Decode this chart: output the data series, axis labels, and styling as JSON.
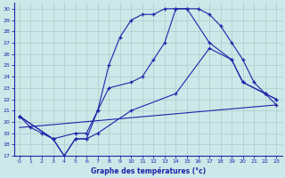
{
  "xlabel": "Graphe des températures (°c)",
  "bg_color": "#cce8e8",
  "grid_color": "#aacccc",
  "line_color": "#2222aa",
  "xlim": [
    -0.5,
    23.5
  ],
  "ylim": [
    17,
    30.5
  ],
  "xticks": [
    0,
    1,
    2,
    3,
    4,
    5,
    6,
    7,
    8,
    9,
    10,
    11,
    12,
    13,
    14,
    15,
    16,
    17,
    18,
    19,
    20,
    21,
    22,
    23
  ],
  "yticks": [
    17,
    18,
    19,
    20,
    21,
    22,
    23,
    24,
    25,
    26,
    27,
    28,
    29,
    30
  ],
  "line1_x": [
    0,
    1,
    2,
    3,
    4,
    5,
    6,
    7,
    8,
    9,
    10,
    11,
    12,
    13,
    14,
    15,
    16,
    17,
    18,
    19,
    20,
    21,
    22,
    23
  ],
  "line1_y": [
    20.5,
    19.5,
    19.0,
    18.5,
    17.0,
    18.5,
    18.5,
    21.0,
    25.0,
    27.5,
    29.0,
    29.5,
    29.5,
    30.0,
    30.0,
    30.0,
    30.0,
    29.5,
    28.5,
    27.0,
    25.5,
    23.5,
    22.5,
    21.5
  ],
  "line2_x": [
    0,
    3,
    5,
    6,
    7,
    8,
    10,
    11,
    12,
    13,
    14,
    15,
    17,
    19,
    20,
    22,
    23
  ],
  "line2_y": [
    20.5,
    18.5,
    19.0,
    19.0,
    21.0,
    23.0,
    23.5,
    24.0,
    25.5,
    27.0,
    30.0,
    30.0,
    27.0,
    25.5,
    23.5,
    22.5,
    22.0
  ],
  "line3_x": [
    0,
    23
  ],
  "line3_y": [
    19.5,
    21.5
  ],
  "line4_x": [
    0,
    3,
    4,
    5,
    6,
    7,
    10,
    14,
    17,
    19,
    20,
    22,
    23
  ],
  "line4_y": [
    20.5,
    18.5,
    17.0,
    18.5,
    18.5,
    19.0,
    21.0,
    22.5,
    26.5,
    25.5,
    23.5,
    22.5,
    22.0
  ]
}
